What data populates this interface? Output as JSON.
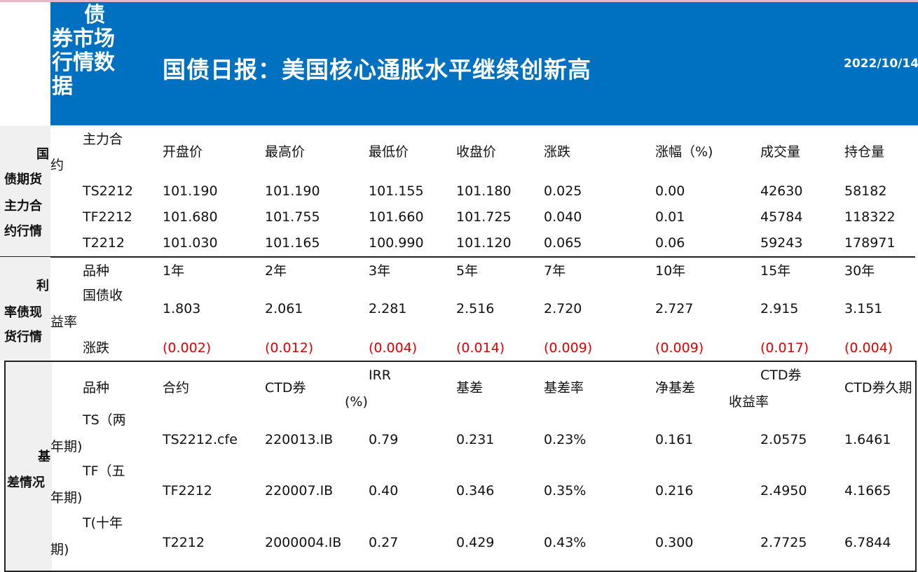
{
  "header": {
    "side_title_lines": [
      "债",
      "券市场",
      "行情数",
      "据"
    ],
    "title": "国债日报：美国核心通胀水平继续创新高",
    "date": "2022/10/14"
  },
  "futures": {
    "section_label_lines": [
      "国",
      "债期货",
      "主力合",
      "约行情"
    ],
    "head_first_lines": [
      "主力合",
      "约"
    ],
    "columns": [
      "开盘价",
      "最高价",
      "最低价",
      "收盘价",
      "涨跌",
      "涨幅（%)",
      "成交量",
      "持仓量"
    ],
    "rows": [
      [
        "TS2212",
        "101.190",
        "101.190",
        "101.155",
        "101.180",
        "0.025",
        "0.00",
        "42630",
        "58182"
      ],
      [
        "TF2212",
        "101.680",
        "101.755",
        "101.660",
        "101.725",
        "0.040",
        "0.01",
        "45784",
        "118322"
      ],
      [
        "T2212",
        "101.030",
        "101.165",
        "100.990",
        "101.120",
        "0.065",
        "0.06",
        "59243",
        "178971"
      ]
    ]
  },
  "spot": {
    "section_label_lines": [
      "利",
      "率债现",
      "货行情"
    ],
    "head_first": "品种",
    "columns": [
      "1年",
      "2年",
      "3年",
      "5年",
      "7年",
      "10年",
      "15年",
      "30年"
    ],
    "yield_label_lines": [
      "国债收",
      "益率"
    ],
    "yields": [
      "1.803",
      "2.061",
      "2.281",
      "2.516",
      "2.720",
      "2.727",
      "2.915",
      "3.151"
    ],
    "change_label": "涨跌",
    "changes": [
      "(0.002)",
      "(0.012)",
      "(0.004)",
      "(0.014)",
      "(0.009)",
      "(0.009)",
      "(0.017)",
      "(0.004)"
    ],
    "change_color": "#e00000"
  },
  "basis": {
    "section_label_lines": [
      "基",
      "差情况"
    ],
    "columns": [
      "品种",
      "合约",
      "CTD券",
      "IRR",
      "(%)",
      "基差",
      "基差率",
      "净基差",
      "CTD券",
      "收益率",
      "CTD券久期"
    ],
    "rows": [
      {
        "name_lines": [
          "TS（两",
          "年期)"
        ],
        "values": [
          "TS2212.cfe",
          "220013.IB",
          "0.79",
          "0.231",
          "0.23%",
          "0.161",
          "2.0575",
          "1.6461"
        ]
      },
      {
        "name_lines": [
          "TF（五",
          "年期)"
        ],
        "values": [
          "TF2212",
          "220007.IB",
          "0.40",
          "0.346",
          "0.35%",
          "0.216",
          "2.4950",
          "4.1665"
        ]
      },
      {
        "name_lines": [
          "T(十年",
          "期)"
        ],
        "values": [
          "T2212",
          "2000004.IB",
          "0.27",
          "0.429",
          "0.43%",
          "0.300",
          "2.7725",
          "6.7844"
        ]
      }
    ]
  },
  "colors": {
    "banner": "#0070c0",
    "label_bg": "#f0f0f0",
    "negative": "#e00000"
  }
}
